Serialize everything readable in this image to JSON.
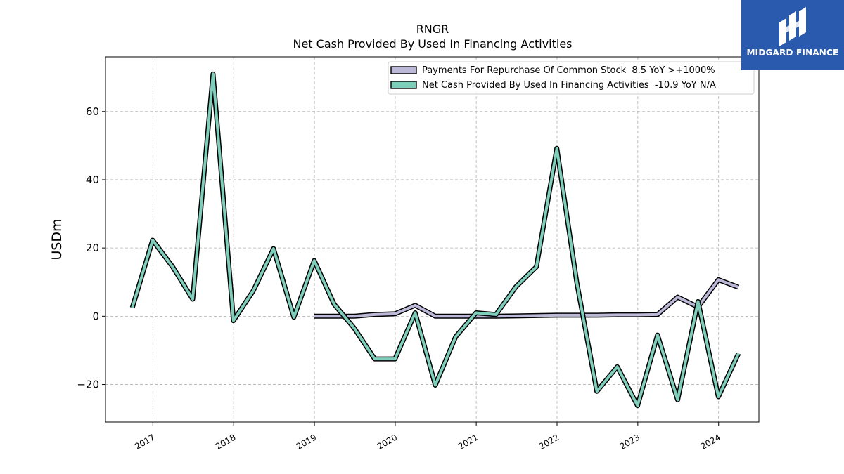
{
  "chart_data": {
    "type": "line",
    "title": "RNGR",
    "subtitle": "Net Cash Provided By Used In Financing Activities",
    "ylabel": "USDm",
    "xlabel": "",
    "ylim": [
      -31,
      76
    ],
    "xlim": [
      "2016-06-01",
      "2024-07-01"
    ],
    "yticks": [
      {
        "value": -20,
        "label": "−20"
      },
      {
        "value": 0,
        "label": "0"
      },
      {
        "value": 20,
        "label": "20"
      },
      {
        "value": 40,
        "label": "40"
      },
      {
        "value": 60,
        "label": "60"
      }
    ],
    "xticks": [
      {
        "date": "2017-01-01",
        "label": "2017"
      },
      {
        "date": "2018-01-01",
        "label": "2018"
      },
      {
        "date": "2019-01-01",
        "label": "2019"
      },
      {
        "date": "2020-01-01",
        "label": "2020"
      },
      {
        "date": "2021-01-01",
        "label": "2021"
      },
      {
        "date": "2022-01-01",
        "label": "2022"
      },
      {
        "date": "2023-01-01",
        "label": "2023"
      },
      {
        "date": "2024-01-01",
        "label": "2024"
      }
    ],
    "grid": true,
    "legend_position": "top-right",
    "series": [
      {
        "name": "Payments For Repurchase Of Common Stock  8.5 YoY >+1000%",
        "color": "#bcb8d8",
        "x": [
          "2018-12-31",
          "2019-03-31",
          "2019-06-30",
          "2019-09-30",
          "2019-12-31",
          "2020-03-31",
          "2020-06-30",
          "2020-09-30",
          "2020-12-31",
          "2021-03-31",
          "2021-06-30",
          "2021-09-30",
          "2021-12-31",
          "2022-03-31",
          "2022-06-30",
          "2022-09-30",
          "2022-12-31",
          "2023-03-31",
          "2023-06-30",
          "2023-09-30",
          "2023-12-31",
          "2024-03-31"
        ],
        "y": [
          0,
          0,
          0,
          0.5,
          0.7,
          3.2,
          0,
          0,
          0,
          0,
          0.1,
          0.2,
          0.3,
          0.3,
          0.3,
          0.4,
          0.4,
          0.5,
          5.6,
          2.7,
          10.7,
          8.5
        ]
      },
      {
        "name": "Net Cash Provided By Used In Financing Activities  -10.9 YoY N/A",
        "color": "#7fcdbb",
        "x": [
          "2016-09-30",
          "2016-12-31",
          "2017-03-31",
          "2017-06-30",
          "2017-09-30",
          "2017-12-31",
          "2018-03-31",
          "2018-06-30",
          "2018-09-30",
          "2018-12-31",
          "2019-03-31",
          "2019-06-30",
          "2019-09-30",
          "2019-12-31",
          "2020-03-31",
          "2020-06-30",
          "2020-09-30",
          "2020-12-31",
          "2021-03-31",
          "2021-06-30",
          "2021-09-30",
          "2021-12-31",
          "2022-03-31",
          "2022-06-30",
          "2022-09-30",
          "2022-12-31",
          "2023-03-31",
          "2023-06-30",
          "2023-09-30",
          "2023-12-31",
          "2024-03-31"
        ],
        "y": [
          2.5,
          22.3,
          14.5,
          5,
          71,
          -1.3,
          7.5,
          19.8,
          -0.3,
          16.3,
          3.5,
          -3.5,
          -12.5,
          -12.5,
          1,
          -20.2,
          -6,
          1,
          0.5,
          8.7,
          14.5,
          49.2,
          10,
          -22,
          -14.8,
          -26.2,
          -5.5,
          -24.5,
          4.3,
          -23.6,
          -10.9
        ]
      }
    ]
  },
  "logo": {
    "text": "MIDGARD FINANCE"
  }
}
